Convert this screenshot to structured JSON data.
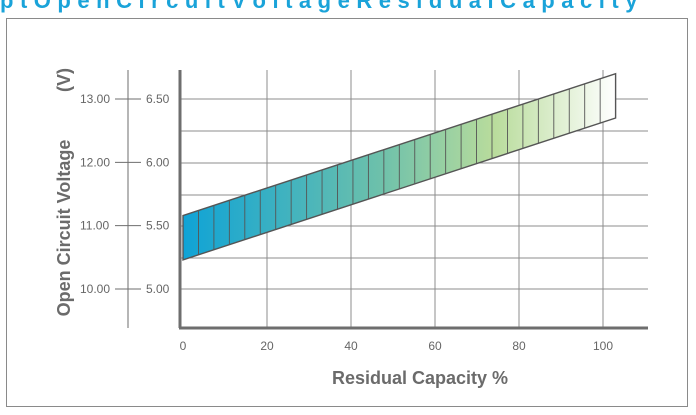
{
  "header": {
    "title_fragment": "p t   O p e n C i r c u i t V o l t a g e   R e s i d u a l C a p a c i t y"
  },
  "chart_data": {
    "type": "area",
    "title": "",
    "xlabel": "Residual Capacity %",
    "ylabel": "Open Circuit Voltage",
    "ylabel_unit": "(V)",
    "xlim": [
      0,
      110
    ],
    "x_ticks": [
      0,
      20,
      40,
      60,
      80,
      100
    ],
    "y_ticks_12v": [
      "13.00",
      "12.00",
      "11.00",
      "10.00"
    ],
    "y_ticks_6v": [
      "6.50",
      "6.00",
      "5.50",
      "5.00"
    ],
    "y_tick_values_6v": [
      6.5,
      6.0,
      5.5,
      5.0
    ],
    "ylim_6v": [
      4.7,
      6.8
    ],
    "grid": true,
    "band": {
      "x": [
        0,
        103
      ],
      "upper_6v": [
        5.58,
        6.7
      ],
      "lower_6v": [
        5.23,
        6.35
      ],
      "segments": 28
    },
    "colors": {
      "start": "#0fa3d6",
      "mid": "#7fc6a4",
      "end": "#ffffff",
      "stroke": "#555555",
      "axis": "#6e6e6e",
      "grid": "#8c8c8c"
    }
  }
}
